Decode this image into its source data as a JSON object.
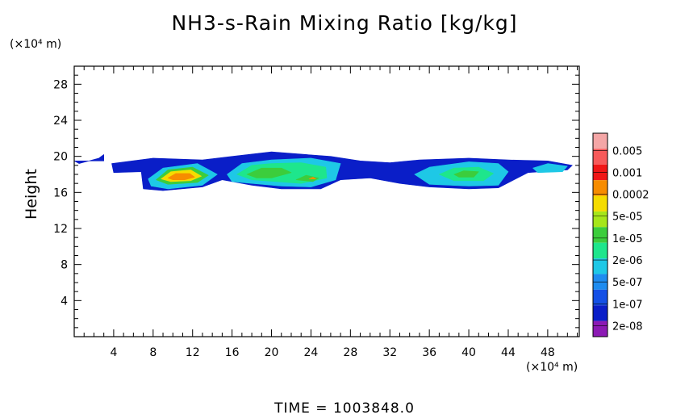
{
  "chart_data": {
    "type": "heatmap",
    "title": "NH3-s-Rain Mixing Ratio [kg/kg]",
    "ylabel": "Height",
    "x_unit": "(×10⁴ m)",
    "y_unit": "(×10⁴ m)",
    "footer": "TIME = 1003848.0",
    "xlim": [
      0,
      51.2
    ],
    "ylim": [
      0,
      30
    ],
    "x_ticks": [
      4,
      8,
      12,
      16,
      20,
      24,
      28,
      32,
      36,
      40,
      44,
      48
    ],
    "y_ticks": [
      4,
      8,
      12,
      16,
      20,
      24,
      28
    ],
    "colorbar": {
      "labels": [
        "0.005",
        "0.001",
        "0.0002",
        "5e-05",
        "1e-05",
        "2e-06",
        "5e-07",
        "1e-07",
        "2e-08"
      ],
      "colors": [
        "#f4a6a6",
        "#f75a5a",
        "#f01616",
        "#f78c00",
        "#f5dc00",
        "#a6e61a",
        "#3ccd3c",
        "#1ee68c",
        "#1ec8e6",
        "#1e8cf0",
        "#1450e6",
        "#0a1ec8",
        "#8c1ab4"
      ]
    },
    "regions": [
      {
        "level": 1,
        "poly": [
          [
            0,
            19.5
          ],
          [
            3,
            19.5
          ],
          [
            3,
            20.2
          ],
          [
            2.5,
            19.8
          ],
          [
            0.5,
            19.2
          ]
        ]
      },
      {
        "level": 1,
        "poly": [
          [
            3.8,
            19.2
          ],
          [
            8,
            19.8
          ],
          [
            13,
            19.6
          ],
          [
            16,
            20
          ],
          [
            20,
            20.5
          ],
          [
            26,
            20
          ],
          [
            29,
            19.5
          ],
          [
            32,
            19.3
          ],
          [
            35,
            19.6
          ],
          [
            40,
            19.8
          ],
          [
            44,
            19.6
          ],
          [
            48,
            19.5
          ],
          [
            50.5,
            19
          ],
          [
            50,
            18.5
          ],
          [
            46,
            18.2
          ],
          [
            43,
            16.5
          ],
          [
            40,
            16.4
          ],
          [
            36,
            16.6
          ],
          [
            33,
            17
          ],
          [
            30,
            17.6
          ],
          [
            27,
            17.4
          ],
          [
            25,
            16.4
          ],
          [
            21,
            16.4
          ],
          [
            18,
            16.8
          ],
          [
            15,
            17.4
          ],
          [
            13,
            16.6
          ],
          [
            9,
            16.2
          ],
          [
            7,
            16.4
          ],
          [
            6.8,
            18.3
          ],
          [
            4,
            18.2
          ]
        ]
      },
      {
        "level": 4,
        "poly": [
          [
            7.5,
            17.5
          ],
          [
            9,
            18.7
          ],
          [
            12.5,
            19.2
          ],
          [
            14.5,
            18
          ],
          [
            13,
            16.8
          ],
          [
            9.5,
            16.4
          ],
          [
            7.8,
            16.7
          ]
        ]
      },
      {
        "level": 4,
        "poly": [
          [
            15.5,
            18
          ],
          [
            17,
            19.2
          ],
          [
            20,
            19.6
          ],
          [
            24,
            19.8
          ],
          [
            27,
            19.2
          ],
          [
            26.5,
            17.4
          ],
          [
            24,
            16.6
          ],
          [
            21,
            16.7
          ],
          [
            18,
            17
          ],
          [
            16,
            17.2
          ]
        ]
      },
      {
        "level": 4,
        "poly": [
          [
            34.5,
            18
          ],
          [
            36,
            18.8
          ],
          [
            40,
            19.4
          ],
          [
            43,
            19.2
          ],
          [
            44,
            18.3
          ],
          [
            43,
            16.8
          ],
          [
            40,
            16.7
          ],
          [
            36,
            16.9
          ]
        ]
      },
      {
        "level": 4,
        "poly": [
          [
            46.5,
            18.7
          ],
          [
            48,
            19.2
          ],
          [
            50,
            18.9
          ],
          [
            49.5,
            18.3
          ],
          [
            47,
            18.2
          ]
        ]
      },
      {
        "level": 5,
        "poly": [
          [
            16.5,
            18
          ],
          [
            18,
            19
          ],
          [
            20,
            19.2
          ],
          [
            23,
            19.3
          ],
          [
            25.5,
            18.8
          ],
          [
            25.6,
            17.6
          ],
          [
            23,
            17
          ],
          [
            20.5,
            17.2
          ],
          [
            18,
            17.4
          ]
        ]
      },
      {
        "level": 5,
        "poly": [
          [
            37,
            18
          ],
          [
            38.5,
            18.7
          ],
          [
            41,
            18.8
          ],
          [
            42.5,
            18.1
          ],
          [
            41.5,
            17.3
          ],
          [
            38.5,
            17.3
          ]
        ]
      },
      {
        "level": 6,
        "poly": [
          [
            8.3,
            17.4
          ],
          [
            9.5,
            18.5
          ],
          [
            12,
            18.8
          ],
          [
            13.6,
            17.9
          ],
          [
            12.5,
            17.1
          ],
          [
            9.5,
            16.9
          ]
        ]
      },
      {
        "level": 6,
        "poly": [
          [
            17.5,
            18
          ],
          [
            19,
            18.7
          ],
          [
            21,
            18.7
          ],
          [
            22,
            18.2
          ],
          [
            20,
            17.6
          ],
          [
            18.5,
            17.6
          ]
        ]
      },
      {
        "level": 6,
        "poly": [
          [
            22.5,
            17.4
          ],
          [
            23.5,
            17.9
          ],
          [
            24.8,
            17.6
          ],
          [
            24.2,
            17.2
          ]
        ]
      },
      {
        "level": 6,
        "poly": [
          [
            38.5,
            18
          ],
          [
            39.5,
            18.4
          ],
          [
            41,
            18.3
          ],
          [
            40.5,
            17.7
          ],
          [
            39,
            17.7
          ]
        ]
      },
      {
        "level": 8,
        "poly": [
          [
            8.8,
            17.5
          ],
          [
            9.8,
            18.3
          ],
          [
            11.8,
            18.5
          ],
          [
            12.9,
            17.8
          ],
          [
            11.8,
            17.3
          ],
          [
            9.8,
            17.2
          ]
        ]
      },
      {
        "level": 9,
        "poly": [
          [
            9.5,
            17.6
          ],
          [
            10.3,
            18.1
          ],
          [
            11.7,
            18.1
          ],
          [
            12.2,
            17.7
          ],
          [
            11.2,
            17.4
          ],
          [
            10,
            17.4
          ]
        ]
      },
      {
        "level": 9,
        "poly": [
          [
            23.8,
            17.5
          ],
          [
            24.2,
            17.7
          ],
          [
            24.5,
            17.5
          ]
        ]
      }
    ]
  }
}
